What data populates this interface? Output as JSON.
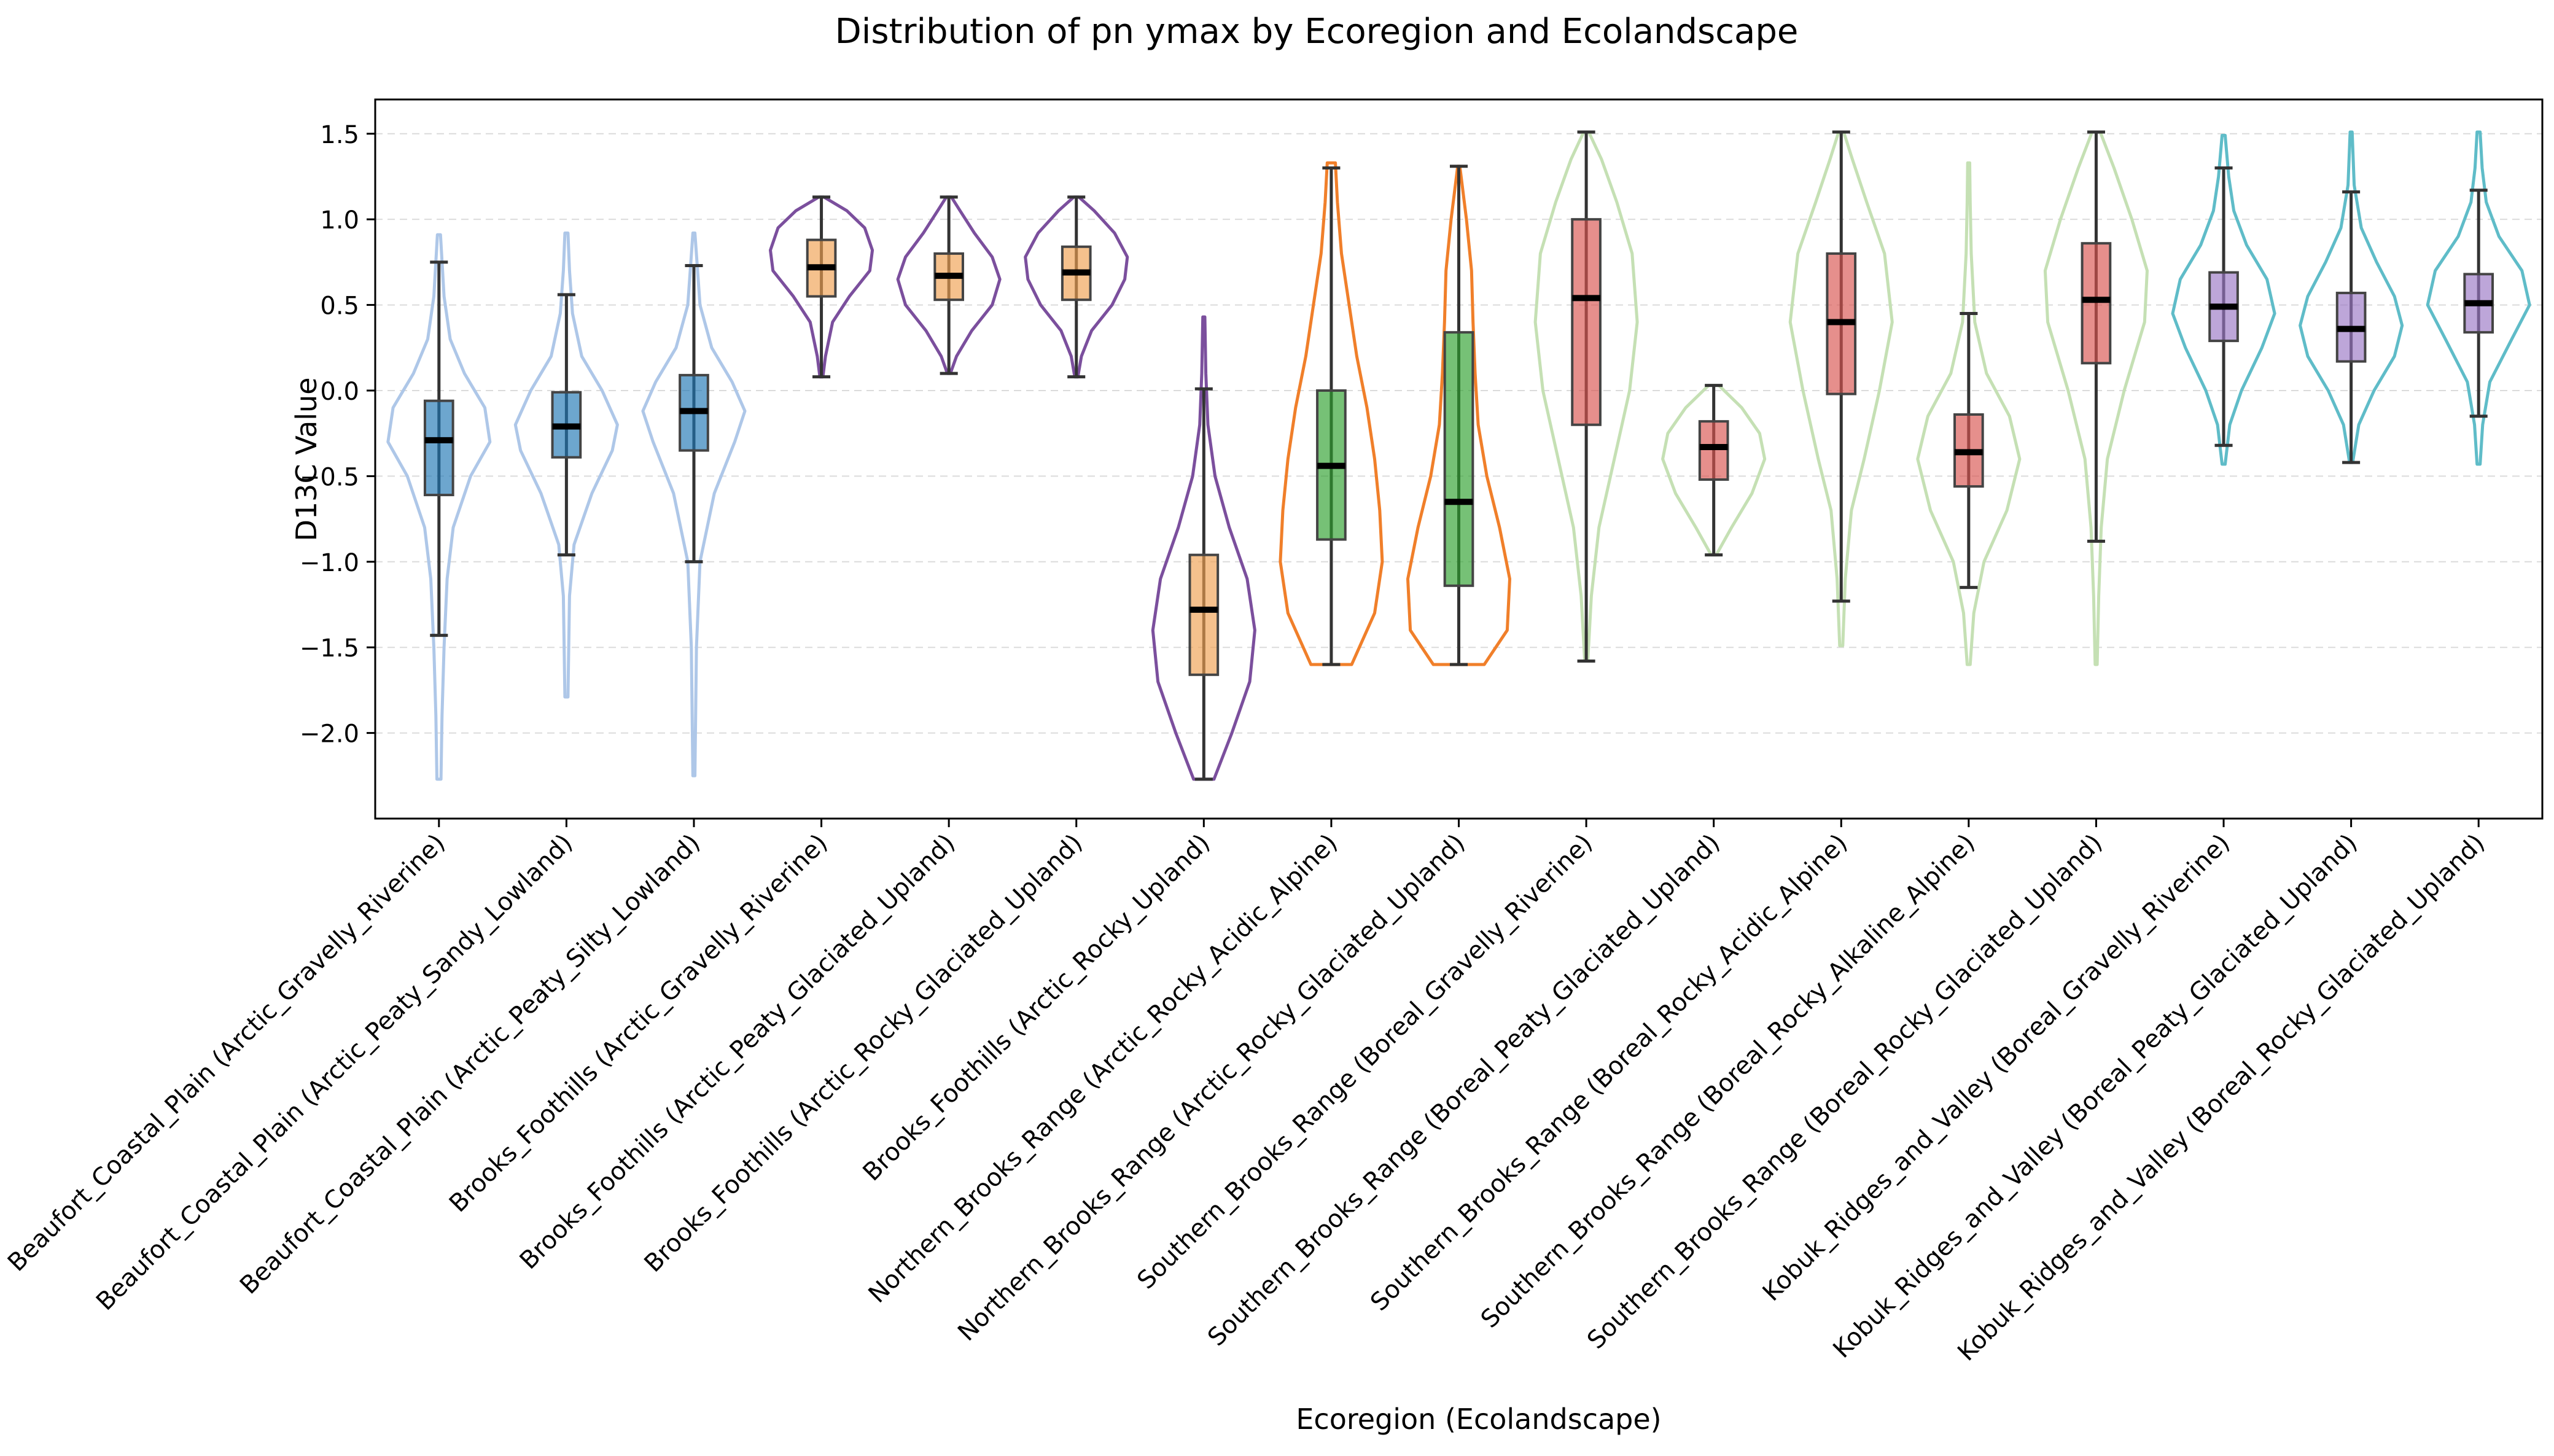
{
  "chart_data": {
    "type": "violin",
    "title": "Distribution of pn ymax by Ecoregion and Ecolandscape",
    "xlabel": "Ecoregion (Ecolandscape)",
    "ylabel": "D13C Value",
    "ylim": [
      -2.5,
      1.7
    ],
    "yticks": [
      -2.0,
      -1.5,
      -1.0,
      -0.5,
      0.0,
      0.5,
      1.0,
      1.5
    ],
    "ytick_labels": [
      "−2.0",
      "−1.5",
      "−1.0",
      "−0.5",
      "0.0",
      "0.5",
      "1.0",
      "1.5"
    ],
    "grid": "y-dashed",
    "legend": "none",
    "categories": [
      "Beaufort_Coastal_Plain (Arctic_Gravelly_Riverine)",
      "Beaufort_Coastal_Plain (Arctic_Peaty_Sandy_Lowland)",
      "Beaufort_Coastal_Plain (Arctic_Peaty_Silty_Lowland)",
      "Brooks_Foothills (Arctic_Gravelly_Riverine)",
      "Brooks_Foothills (Arctic_Peaty_Glaciated_Upland)",
      "Brooks_Foothills (Arctic_Rocky_Glaciated_Upland)",
      "Brooks_Foothills (Arctic_Rocky_Upland)",
      "Northern_Brooks_Range (Arctic_Rocky_Acidic_Alpine)",
      "Northern_Brooks_Range (Arctic_Rocky_Glaciated_Upland)",
      "Southern_Brooks_Range (Boreal_Gravelly_Riverine)",
      "Southern_Brooks_Range (Boreal_Peaty_Glaciated_Upland)",
      "Southern_Brooks_Range (Boreal_Rocky_Acidic_Alpine)",
      "Southern_Brooks_Range (Boreal_Rocky_Alkaline_Alpine)",
      "Southern_Brooks_Range (Boreal_Rocky_Glaciated_Upland)",
      "Kobuk_Ridges_and_Valley (Boreal_Gravelly_Riverine)",
      "Kobuk_Ridges_and_Valley (Boreal_Peaty_Glaciated_Upland)",
      "Kobuk_Ridges_and_Valley (Boreal_Rocky_Glaciated_Upland)"
    ],
    "groups": [
      {
        "violin_color": "#aec7e8",
        "box_color": "#1f77b4",
        "min": -1.43,
        "q1": -0.61,
        "median": -0.29,
        "q3": -0.06,
        "max": 0.75,
        "violin_min": -2.27,
        "violin_max": 0.91,
        "density": [
          [
            -2.27,
            0.04
          ],
          [
            -1.9,
            0.06
          ],
          [
            -1.5,
            0.1
          ],
          [
            -1.1,
            0.16
          ],
          [
            -0.8,
            0.28
          ],
          [
            -0.5,
            0.62
          ],
          [
            -0.3,
            1.0
          ],
          [
            -0.1,
            0.9
          ],
          [
            0.1,
            0.5
          ],
          [
            0.3,
            0.22
          ],
          [
            0.55,
            0.1
          ],
          [
            0.91,
            0.03
          ]
        ]
      },
      {
        "violin_color": "#aec7e8",
        "box_color": "#1f77b4",
        "min": -0.96,
        "q1": -0.39,
        "median": -0.21,
        "q3": -0.01,
        "max": 0.56,
        "violin_min": -1.79,
        "violin_max": 0.92,
        "density": [
          [
            -1.79,
            0.03
          ],
          [
            -1.2,
            0.06
          ],
          [
            -0.9,
            0.15
          ],
          [
            -0.6,
            0.5
          ],
          [
            -0.35,
            0.9
          ],
          [
            -0.2,
            1.0
          ],
          [
            0.0,
            0.7
          ],
          [
            0.2,
            0.3
          ],
          [
            0.45,
            0.12
          ],
          [
            0.7,
            0.06
          ],
          [
            0.92,
            0.03
          ]
        ]
      },
      {
        "violin_color": "#aec7e8",
        "box_color": "#1f77b4",
        "min": -1.0,
        "q1": -0.35,
        "median": -0.12,
        "q3": 0.09,
        "max": 0.73,
        "violin_min": -2.25,
        "violin_max": 0.92,
        "density": [
          [
            -2.25,
            0.02
          ],
          [
            -1.5,
            0.05
          ],
          [
            -1.0,
            0.12
          ],
          [
            -0.6,
            0.4
          ],
          [
            -0.3,
            0.8
          ],
          [
            -0.12,
            1.0
          ],
          [
            0.05,
            0.75
          ],
          [
            0.25,
            0.35
          ],
          [
            0.5,
            0.12
          ],
          [
            0.75,
            0.06
          ],
          [
            0.92,
            0.02
          ]
        ]
      },
      {
        "violin_color": "#7b4f9d",
        "box_color": "#f0a050",
        "min": 0.08,
        "q1": 0.55,
        "median": 0.72,
        "q3": 0.88,
        "max": 1.13,
        "violin_min": 0.08,
        "violin_max": 1.13,
        "density": [
          [
            0.08,
            0.03
          ],
          [
            0.2,
            0.08
          ],
          [
            0.4,
            0.22
          ],
          [
            0.55,
            0.55
          ],
          [
            0.7,
            0.95
          ],
          [
            0.82,
            1.0
          ],
          [
            0.95,
            0.85
          ],
          [
            1.05,
            0.5
          ],
          [
            1.13,
            0.05
          ]
        ]
      },
      {
        "violin_color": "#7b4f9d",
        "box_color": "#f0a050",
        "min": 0.1,
        "q1": 0.53,
        "median": 0.67,
        "q3": 0.8,
        "max": 1.13,
        "violin_min": 0.1,
        "violin_max": 1.13,
        "density": [
          [
            0.1,
            0.03
          ],
          [
            0.2,
            0.15
          ],
          [
            0.35,
            0.45
          ],
          [
            0.5,
            0.85
          ],
          [
            0.65,
            1.0
          ],
          [
            0.78,
            0.85
          ],
          [
            0.92,
            0.5
          ],
          [
            1.05,
            0.22
          ],
          [
            1.13,
            0.05
          ]
        ]
      },
      {
        "violin_color": "#7b4f9d",
        "box_color": "#f0a050",
        "min": 0.08,
        "q1": 0.53,
        "median": 0.69,
        "q3": 0.84,
        "max": 1.13,
        "violin_min": 0.08,
        "violin_max": 1.13,
        "density": [
          [
            0.08,
            0.03
          ],
          [
            0.2,
            0.1
          ],
          [
            0.35,
            0.3
          ],
          [
            0.5,
            0.7
          ],
          [
            0.65,
            0.95
          ],
          [
            0.78,
            1.0
          ],
          [
            0.92,
            0.75
          ],
          [
            1.05,
            0.35
          ],
          [
            1.13,
            0.05
          ]
        ]
      },
      {
        "violin_color": "#7b4f9d",
        "box_color": "#f0a050",
        "min": -2.27,
        "q1": -1.66,
        "median": -1.28,
        "q3": -0.96,
        "max": 0.01,
        "violin_min": -2.27,
        "violin_max": 0.43,
        "density": [
          [
            -2.27,
            0.2
          ],
          [
            -2.0,
            0.55
          ],
          [
            -1.7,
            0.9
          ],
          [
            -1.4,
            1.0
          ],
          [
            -1.1,
            0.85
          ],
          [
            -0.8,
            0.5
          ],
          [
            -0.5,
            0.22
          ],
          [
            -0.2,
            0.08
          ],
          [
            0.1,
            0.04
          ],
          [
            0.43,
            0.02
          ]
        ]
      },
      {
        "violin_color": "#f07f2a",
        "box_color": "#2ca02c",
        "min": -1.6,
        "q1": -0.87,
        "median": -0.44,
        "q3": 0.0,
        "max": 1.3,
        "violin_min": -1.6,
        "violin_max": 1.33,
        "density": [
          [
            -1.6,
            0.4
          ],
          [
            -1.3,
            0.85
          ],
          [
            -1.0,
            1.0
          ],
          [
            -0.7,
            0.95
          ],
          [
            -0.4,
            0.85
          ],
          [
            -0.1,
            0.7
          ],
          [
            0.2,
            0.5
          ],
          [
            0.5,
            0.35
          ],
          [
            0.8,
            0.2
          ],
          [
            1.1,
            0.12
          ],
          [
            1.33,
            0.08
          ]
        ]
      },
      {
        "violin_color": "#f07f2a",
        "box_color": "#2ca02c",
        "min": -1.6,
        "q1": -1.14,
        "median": -0.65,
        "q3": 0.34,
        "max": 1.31,
        "violin_min": -1.6,
        "violin_max": 1.31,
        "density": [
          [
            -1.6,
            0.5
          ],
          [
            -1.4,
            0.95
          ],
          [
            -1.1,
            1.0
          ],
          [
            -0.8,
            0.8
          ],
          [
            -0.5,
            0.55
          ],
          [
            -0.2,
            0.38
          ],
          [
            0.1,
            0.32
          ],
          [
            0.4,
            0.28
          ],
          [
            0.7,
            0.25
          ],
          [
            1.0,
            0.15
          ],
          [
            1.31,
            0.02
          ]
        ]
      },
      {
        "violin_color": "#c5e0b4",
        "box_color": "#d9534f",
        "min": -1.58,
        "q1": -0.2,
        "median": 0.54,
        "q3": 1.0,
        "max": 1.51,
        "violin_min": -1.58,
        "violin_max": 1.51,
        "density": [
          [
            -1.58,
            0.03
          ],
          [
            -1.2,
            0.1
          ],
          [
            -0.8,
            0.25
          ],
          [
            -0.4,
            0.55
          ],
          [
            0.0,
            0.85
          ],
          [
            0.4,
            1.0
          ],
          [
            0.8,
            0.9
          ],
          [
            1.1,
            0.6
          ],
          [
            1.35,
            0.3
          ],
          [
            1.51,
            0.05
          ]
        ]
      },
      {
        "violin_color": "#c5e0b4",
        "box_color": "#d9534f",
        "min": -0.96,
        "q1": -0.52,
        "median": -0.33,
        "q3": -0.18,
        "max": 0.03,
        "violin_min": -0.96,
        "violin_max": 0.03,
        "density": [
          [
            -0.96,
            0.05
          ],
          [
            -0.8,
            0.35
          ],
          [
            -0.6,
            0.75
          ],
          [
            -0.4,
            1.0
          ],
          [
            -0.25,
            0.9
          ],
          [
            -0.1,
            0.55
          ],
          [
            0.03,
            0.1
          ]
        ]
      },
      {
        "violin_color": "#c5e0b4",
        "box_color": "#d9534f",
        "min": -1.23,
        "q1": -0.02,
        "median": 0.4,
        "q3": 0.8,
        "max": 1.51,
        "violin_min": -1.49,
        "violin_max": 1.51,
        "density": [
          [
            -1.49,
            0.03
          ],
          [
            -1.1,
            0.08
          ],
          [
            -0.7,
            0.2
          ],
          [
            -0.4,
            0.45
          ],
          [
            0.0,
            0.75
          ],
          [
            0.4,
            1.0
          ],
          [
            0.8,
            0.85
          ],
          [
            1.1,
            0.5
          ],
          [
            1.35,
            0.22
          ],
          [
            1.51,
            0.05
          ]
        ]
      },
      {
        "violin_color": "#c5e0b4",
        "box_color": "#d9534f",
        "min": -1.15,
        "q1": -0.56,
        "median": -0.36,
        "q3": -0.14,
        "max": 0.45,
        "violin_min": -1.6,
        "violin_max": 1.33,
        "density": [
          [
            -1.6,
            0.03
          ],
          [
            -1.3,
            0.1
          ],
          [
            -1.0,
            0.3
          ],
          [
            -0.7,
            0.75
          ],
          [
            -0.4,
            1.0
          ],
          [
            -0.15,
            0.8
          ],
          [
            0.1,
            0.35
          ],
          [
            0.4,
            0.12
          ],
          [
            0.8,
            0.05
          ],
          [
            1.1,
            0.03
          ],
          [
            1.33,
            0.02
          ]
        ]
      },
      {
        "violin_color": "#c5e0b4",
        "box_color": "#d9534f",
        "min": -0.88,
        "q1": 0.16,
        "median": 0.53,
        "q3": 0.86,
        "max": 1.51,
        "violin_min": -1.6,
        "violin_max": 1.51,
        "density": [
          [
            -1.6,
            0.02
          ],
          [
            -1.2,
            0.05
          ],
          [
            -0.8,
            0.1
          ],
          [
            -0.4,
            0.22
          ],
          [
            0.0,
            0.55
          ],
          [
            0.4,
            0.95
          ],
          [
            0.7,
            1.0
          ],
          [
            1.0,
            0.7
          ],
          [
            1.3,
            0.35
          ],
          [
            1.51,
            0.08
          ]
        ]
      },
      {
        "violin_color": "#5fbcc8",
        "box_color": "#9a77c4",
        "min": -0.32,
        "q1": 0.29,
        "median": 0.49,
        "q3": 0.69,
        "max": 1.3,
        "violin_min": -0.43,
        "violin_max": 1.49,
        "density": [
          [
            -0.43,
            0.03
          ],
          [
            -0.2,
            0.12
          ],
          [
            0.0,
            0.35
          ],
          [
            0.25,
            0.75
          ],
          [
            0.45,
            1.0
          ],
          [
            0.65,
            0.85
          ],
          [
            0.85,
            0.45
          ],
          [
            1.05,
            0.2
          ],
          [
            1.25,
            0.1
          ],
          [
            1.49,
            0.03
          ]
        ]
      },
      {
        "violin_color": "#5fbcc8",
        "box_color": "#9a77c4",
        "min": -0.42,
        "q1": 0.17,
        "median": 0.36,
        "q3": 0.57,
        "max": 1.16,
        "violin_min": -0.42,
        "violin_max": 1.51,
        "density": [
          [
            -0.42,
            0.03
          ],
          [
            -0.2,
            0.15
          ],
          [
            0.0,
            0.45
          ],
          [
            0.2,
            0.85
          ],
          [
            0.38,
            1.0
          ],
          [
            0.55,
            0.85
          ],
          [
            0.75,
            0.5
          ],
          [
            0.95,
            0.2
          ],
          [
            1.2,
            0.06
          ],
          [
            1.51,
            0.02
          ]
        ]
      },
      {
        "violin_color": "#5fbcc8",
        "box_color": "#9a77c4",
        "min": -0.15,
        "q1": 0.34,
        "median": 0.51,
        "q3": 0.68,
        "max": 1.17,
        "violin_min": -0.43,
        "violin_max": 1.51,
        "density": [
          [
            -0.43,
            0.03
          ],
          [
            -0.2,
            0.08
          ],
          [
            0.05,
            0.22
          ],
          [
            0.3,
            0.65
          ],
          [
            0.5,
            1.0
          ],
          [
            0.7,
            0.85
          ],
          [
            0.9,
            0.4
          ],
          [
            1.1,
            0.15
          ],
          [
            1.3,
            0.07
          ],
          [
            1.51,
            0.03
          ]
        ]
      }
    ]
  }
}
